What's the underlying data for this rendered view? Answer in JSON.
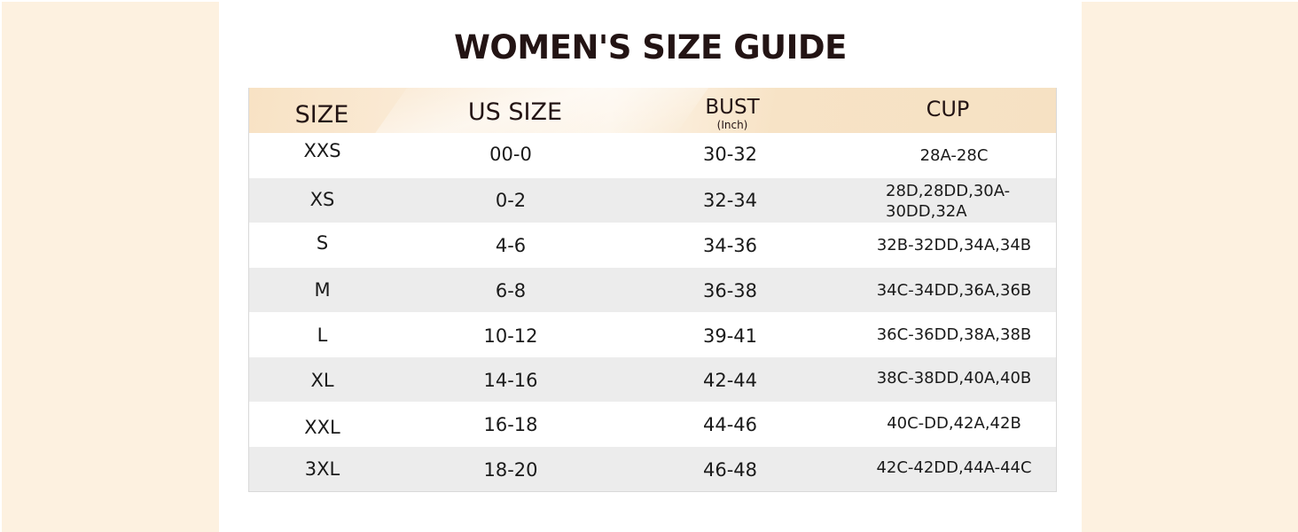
{
  "title": "WOMEN'S SIZE GUIDE",
  "headers": {
    "size": "SIZE",
    "us_size": "US SIZE",
    "bust": "BUST",
    "bust_unit": "(Inch)",
    "cup": "CUP"
  },
  "rows": [
    {
      "size": "XXS",
      "us_size": "00-0",
      "bust": "30-32",
      "cup": "28A-28C"
    },
    {
      "size": "XS",
      "us_size": "0-2",
      "bust": "32-34",
      "cup": "28D,28DD,30A-30DD,32A"
    },
    {
      "size": "S",
      "us_size": "4-6",
      "bust": "34-36",
      "cup": "32B-32DD,34A,34B"
    },
    {
      "size": "M",
      "us_size": "6-8",
      "bust": "36-38",
      "cup": "34C-34DD,36A,36B"
    },
    {
      "size": "L",
      "us_size": "10-12",
      "bust": "39-41",
      "cup": "36C-36DD,38A,38B"
    },
    {
      "size": "XL",
      "us_size": "14-16",
      "bust": "42-44",
      "cup": "38C-38DD,40A,40B"
    },
    {
      "size": "XXL",
      "us_size": "16-18",
      "bust": "44-46",
      "cup": "40C-DD,42A,42B"
    },
    {
      "size": "3XL",
      "us_size": "18-20",
      "bust": "46-48",
      "cup": "42C-42DD,44A-44C"
    }
  ],
  "colors": {
    "side_panel": "#fdf1e0",
    "header_band": "#f8e2c4",
    "alt_row": "#ececec",
    "title_text": "#231414"
  }
}
